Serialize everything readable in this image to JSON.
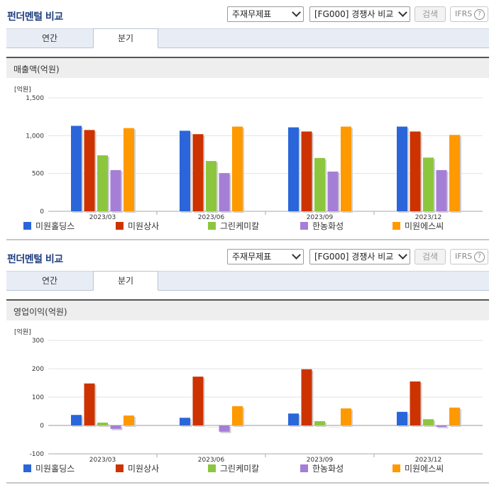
{
  "panels": [
    {
      "title": "펀더멘털 비교",
      "select1": "주재무제표",
      "select2": "[FG000] 경쟁사 비교",
      "search_label": "검색",
      "ifrs_label": "IFRS",
      "help_label": "?",
      "tabs": [
        {
          "label": "연간",
          "active": false
        },
        {
          "label": "분기",
          "active": true
        }
      ],
      "chart_title": "매출액(억원)"
    },
    {
      "title": "펀더멘털 비교",
      "select1": "주재무제표",
      "select2": "[FG000] 경쟁사 비교",
      "search_label": "검색",
      "ifrs_label": "IFRS",
      "help_label": "?",
      "tabs": [
        {
          "label": "연간",
          "active": false
        },
        {
          "label": "분기",
          "active": true
        }
      ],
      "chart_title": "영업이익(억원)"
    }
  ],
  "chart_data": [
    {
      "type": "bar",
      "unit_label": "[억원]",
      "categories": [
        "2023/03",
        "2023/06",
        "2023/09",
        "2023/12"
      ],
      "ylim": [
        0,
        1500
      ],
      "yticks": [
        0,
        500,
        1000,
        1500
      ],
      "ytick_labels": [
        "0",
        "500",
        "1,000",
        "1,500"
      ],
      "grid": true,
      "legend_position": "bottom",
      "series": [
        {
          "name": "미원홀딩스",
          "color": "#2a66d9",
          "values": [
            1130,
            1065,
            1110,
            1120
          ]
        },
        {
          "name": "미원상사",
          "color": "#cc3300",
          "values": [
            1075,
            1020,
            1055,
            1055
          ]
        },
        {
          "name": "그린케미칼",
          "color": "#8cc63f",
          "values": [
            740,
            665,
            705,
            710
          ]
        },
        {
          "name": "한농화성",
          "color": "#a57fd6",
          "values": [
            545,
            505,
            525,
            545
          ]
        },
        {
          "name": "미원에스씨",
          "color": "#ff9900",
          "values": [
            1100,
            1120,
            1120,
            1010
          ]
        }
      ]
    },
    {
      "type": "bar",
      "unit_label": "[억원]",
      "categories": [
        "2023/03",
        "2023/06",
        "2023/09",
        "2023/12"
      ],
      "ylim": [
        -100,
        300
      ],
      "yticks": [
        -100,
        0,
        100,
        200,
        300
      ],
      "ytick_labels": [
        "-100",
        "0",
        "100",
        "200",
        "300"
      ],
      "grid": true,
      "legend_position": "bottom",
      "series": [
        {
          "name": "미원홀딩스",
          "color": "#2a66d9",
          "values": [
            37,
            27,
            42,
            48
          ]
        },
        {
          "name": "미원상사",
          "color": "#cc3300",
          "values": [
            148,
            172,
            198,
            155
          ]
        },
        {
          "name": "그린케미칼",
          "color": "#8cc63f",
          "values": [
            10,
            0,
            15,
            22
          ]
        },
        {
          "name": "한농화성",
          "color": "#a57fd6",
          "values": [
            -12,
            -22,
            0,
            -5
          ]
        },
        {
          "name": "미원에스씨",
          "color": "#ff9900",
          "values": [
            35,
            68,
            60,
            63
          ]
        }
      ]
    }
  ]
}
